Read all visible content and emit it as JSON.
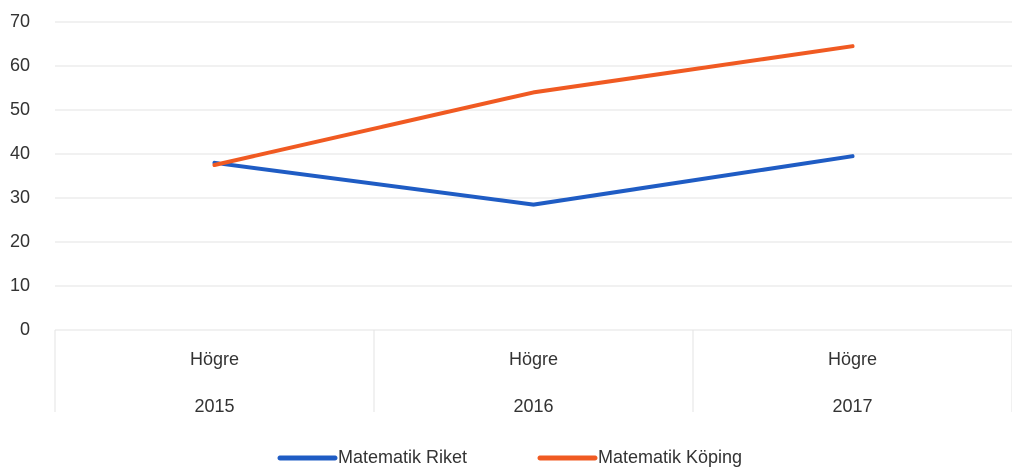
{
  "chart_data": {
    "type": "line",
    "categories": [
      "2015",
      "2016",
      "2017"
    ],
    "subcategories": [
      "Högre",
      "Högre",
      "Högre"
    ],
    "series": [
      {
        "name": "Matematik Riket",
        "color": "#1f5cc4",
        "values": [
          38,
          28.5,
          39.5
        ]
      },
      {
        "name": "Matematik Köping",
        "color": "#f05a22",
        "values": [
          37.5,
          54,
          64.5
        ]
      }
    ],
    "ylim": [
      0,
      70
    ],
    "yticks": [
      0,
      10,
      20,
      30,
      40,
      50,
      60,
      70
    ],
    "grid": true,
    "legend": "bottom"
  }
}
